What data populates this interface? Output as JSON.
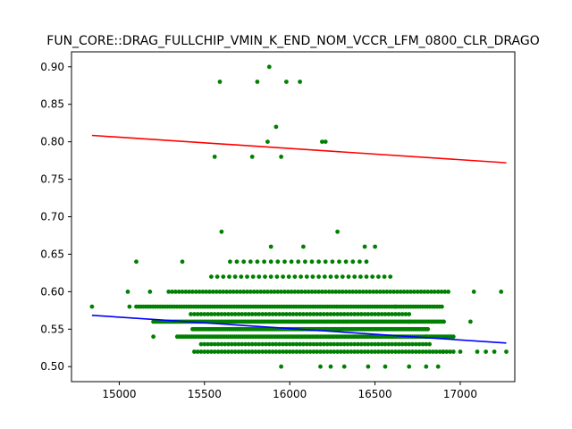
{
  "chart_data": {
    "type": "scatter",
    "title": "FUN_CORE::DRAG_FULLCHIP_VMIN_K_END_NOM_VCCR_LFM_0800_CLR_DRAGO",
    "xlabel": "",
    "ylabel": "",
    "xlim": [
      14720,
      17320
    ],
    "ylim": [
      0.48,
      0.92
    ],
    "x_ticks": [
      15000,
      15500,
      16000,
      16500,
      17000
    ],
    "x_tick_labels": [
      "15000",
      "15500",
      "16000",
      "16500",
      "17000"
    ],
    "y_ticks": [
      0.5,
      0.55,
      0.6,
      0.65,
      0.7,
      0.75,
      0.8,
      0.85,
      0.9
    ],
    "y_tick_labels": [
      "0.50",
      "0.55",
      "0.60",
      "0.65",
      "0.70",
      "0.75",
      "0.80",
      "0.85",
      "0.90"
    ],
    "grid": false,
    "legend": "none",
    "points_color": "#008000",
    "points": [
      [
        14840,
        0.58
      ],
      [
        15050,
        0.6
      ],
      [
        15060,
        0.58
      ],
      [
        15100,
        0.64
      ],
      [
        15180,
        0.6
      ],
      [
        15200,
        0.54
      ],
      [
        15370,
        0.64
      ],
      [
        15560,
        0.78
      ],
      [
        15600,
        0.68
      ],
      [
        15590,
        0.88
      ],
      [
        15780,
        0.78
      ],
      [
        15810,
        0.88
      ],
      [
        15870,
        0.8
      ],
      [
        15880,
        0.9
      ],
      [
        15920,
        0.82
      ],
      [
        15950,
        0.78
      ],
      [
        15980,
        0.88
      ],
      [
        16060,
        0.88
      ],
      [
        16190,
        0.8
      ],
      [
        16210,
        0.8
      ],
      [
        16280,
        0.68
      ],
      [
        15890,
        0.66
      ],
      [
        16080,
        0.66
      ],
      [
        16440,
        0.66
      ],
      [
        16500,
        0.66
      ],
      [
        16620,
        0.58
      ],
      [
        16700,
        0.56
      ],
      [
        16800,
        0.54
      ],
      [
        16900,
        0.52
      ],
      [
        17000,
        0.52
      ],
      [
        17060,
        0.56
      ],
      [
        17080,
        0.6
      ],
      [
        17100,
        0.52
      ],
      [
        17150,
        0.52
      ],
      [
        17200,
        0.52
      ],
      [
        17240,
        0.6
      ],
      [
        17270,
        0.52
      ],
      [
        15950,
        0.5
      ],
      [
        16180,
        0.5
      ],
      [
        16240,
        0.5
      ],
      [
        16320,
        0.5
      ],
      [
        16460,
        0.5
      ],
      [
        16560,
        0.5
      ],
      [
        16700,
        0.5
      ],
      [
        16800,
        0.5
      ],
      [
        16870,
        0.5
      ]
    ],
    "bands": [
      {
        "y": 0.52,
        "x_start": 15440,
        "x_end": 16970,
        "step": 20
      },
      {
        "y": 0.53,
        "x_start": 15480,
        "x_end": 16820,
        "step": 20
      },
      {
        "y": 0.54,
        "x_start": 15340,
        "x_end": 16960,
        "step": 12
      },
      {
        "y": 0.55,
        "x_start": 15430,
        "x_end": 16820,
        "step": 12
      },
      {
        "y": 0.56,
        "x_start": 15200,
        "x_end": 16910,
        "step": 12
      },
      {
        "y": 0.57,
        "x_start": 15420,
        "x_end": 16700,
        "step": 20
      },
      {
        "y": 0.58,
        "x_start": 15100,
        "x_end": 16900,
        "step": 14
      },
      {
        "y": 0.6,
        "x_start": 15290,
        "x_end": 16940,
        "step": 20
      },
      {
        "y": 0.62,
        "x_start": 15540,
        "x_end": 16600,
        "step": 35
      },
      {
        "y": 0.64,
        "x_start": 15650,
        "x_end": 16450,
        "step": 40
      }
    ],
    "series": [
      {
        "color": "#ff0000",
        "x": [
          14840,
          17270
        ],
        "values": [
          0.8085,
          0.772
        ]
      },
      {
        "color": "#0000ff",
        "x": [
          14840,
          17270
        ],
        "values": [
          0.5685,
          0.5315
        ]
      }
    ]
  }
}
